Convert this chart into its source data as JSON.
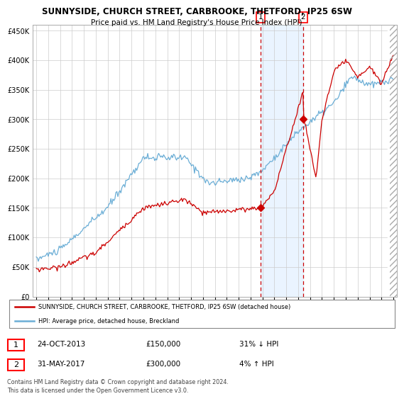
{
  "title": "SUNNYSIDE, CHURCH STREET, CARBROOKE, THETFORD, IP25 6SW",
  "subtitle": "Price paid vs. HM Land Registry's House Price Index (HPI)",
  "legend_line1": "SUNNYSIDE, CHURCH STREET, CARBROOKE, THETFORD, IP25 6SW (detached house)",
  "legend_line2": "HPI: Average price, detached house, Breckland",
  "footer": "Contains HM Land Registry data © Crown copyright and database right 2024.\nThis data is licensed under the Open Government Licence v3.0.",
  "sale1_label": "1",
  "sale1_date": "24-OCT-2013",
  "sale1_price": "£150,000",
  "sale1_hpi": "31% ↓ HPI",
  "sale2_label": "2",
  "sale2_date": "31-MAY-2017",
  "sale2_price": "£300,000",
  "sale2_hpi": "4% ↑ HPI",
  "hpi_color": "#6baed6",
  "price_color": "#cc0000",
  "vline_color": "#cc0000",
  "shade_color": "#ddeeff",
  "background_color": "#ffffff",
  "grid_color": "#cccccc",
  "ylim": [
    0,
    460000
  ],
  "yticks": [
    0,
    50000,
    100000,
    150000,
    200000,
    250000,
    300000,
    350000,
    400000,
    450000
  ],
  "year_start": 1995,
  "year_end": 2025,
  "sale1_year": 2013.82,
  "sale2_year": 2017.42
}
